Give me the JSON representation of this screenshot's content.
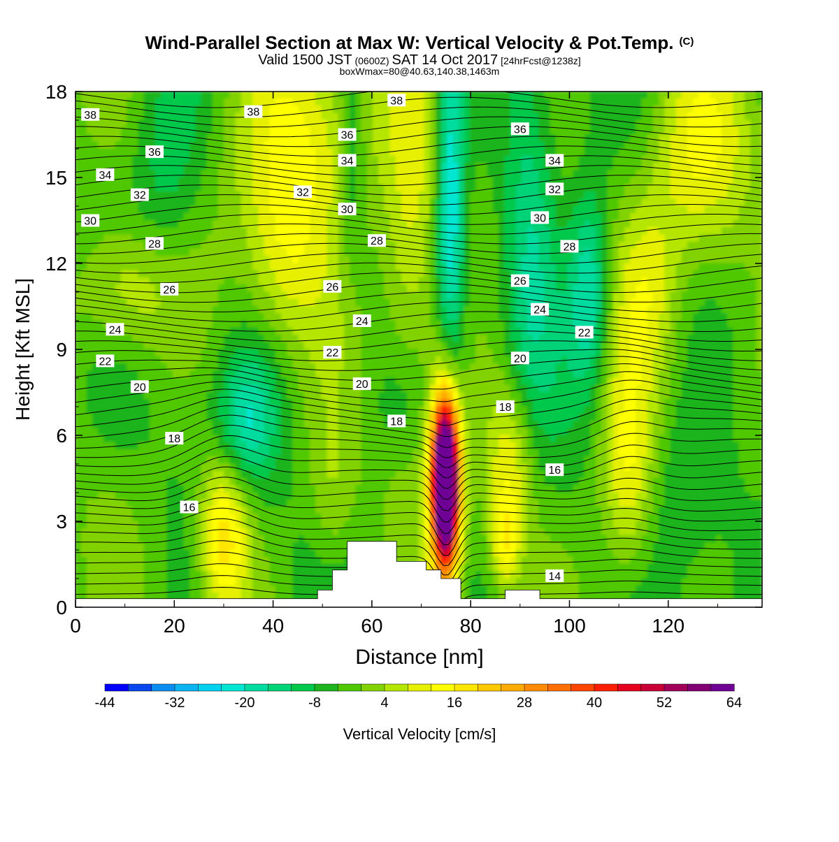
{
  "chart_data": {
    "type": "heatmap",
    "title": "Wind-Parallel Section at Max W: Vertical Velocity & Pot.Temp.",
    "title_mark": "(C)",
    "subtitle_parts": [
      "Valid 1500 JST",
      "(0600Z)",
      "SAT 14 Oct 2017",
      "[24hrFcst@1238z]"
    ],
    "info": "boxWmax=80@40.63,140.38,1463m",
    "xlabel": "Distance [nm]",
    "ylabel": "Height [Kft MSL]",
    "xlim": [
      0,
      139
    ],
    "ylim": [
      0,
      18
    ],
    "x_ticks": [
      0,
      20,
      40,
      60,
      80,
      100,
      120
    ],
    "y_ticks": [
      0,
      3,
      6,
      9,
      12,
      15,
      18
    ],
    "grid": false,
    "colorbar": {
      "label": "Vertical Velocity [cm/s]",
      "tick_labels": [
        "-44",
        "-32",
        "-20",
        "-8",
        "4",
        "16",
        "28",
        "40",
        "52",
        "64"
      ],
      "min": -44,
      "step": 4,
      "colors": [
        "#0000ff",
        "#0a46f0",
        "#0a8cf0",
        "#0ab4f0",
        "#00d2f0",
        "#00e6d2",
        "#00dca0",
        "#00d278",
        "#00c84b",
        "#1eb41e",
        "#50c800",
        "#82d200",
        "#b4e600",
        "#e6f000",
        "#ffff00",
        "#ffe600",
        "#ffc800",
        "#ffaa00",
        "#ff8c00",
        "#ff6e00",
        "#ff4600",
        "#ff1e00",
        "#e6001e",
        "#c80037",
        "#a0005a",
        "#820073",
        "#6e0096"
      ]
    },
    "w_features": [
      {
        "x": 75,
        "y": 4.3,
        "rx": 2.4,
        "ry": 2.6,
        "w": 80
      },
      {
        "x": 75,
        "y": 4.6,
        "rx": 3.5,
        "ry": 4.0,
        "w": 30
      },
      {
        "x": 30,
        "y": 2.5,
        "rx": 5,
        "ry": 2.8,
        "w": 22
      },
      {
        "x": 88,
        "y": 5.0,
        "rx": 5,
        "ry": 3.0,
        "w": 16
      },
      {
        "x": 87,
        "y": 2.2,
        "rx": 3,
        "ry": 1.6,
        "w": 14
      },
      {
        "x": 112,
        "y": 4.5,
        "rx": 6,
        "ry": 4.0,
        "w": 18
      },
      {
        "x": 52,
        "y": 3.5,
        "rx": 5,
        "ry": 3.0,
        "w": 8
      },
      {
        "x": 10,
        "y": 11.0,
        "rx": 10,
        "ry": 2.5,
        "w": 14
      },
      {
        "x": 47,
        "y": 16.5,
        "rx": 13,
        "ry": 4.0,
        "w": 18
      },
      {
        "x": 42,
        "y": 12.0,
        "rx": 8,
        "ry": 3.0,
        "w": 10
      },
      {
        "x": 68,
        "y": 12.5,
        "rx": 6,
        "ry": 6.0,
        "w": 14
      },
      {
        "x": 127,
        "y": 15.5,
        "rx": 12,
        "ry": 4.0,
        "w": 16
      },
      {
        "x": 116,
        "y": 11.0,
        "rx": 6,
        "ry": 3.0,
        "w": 8
      },
      {
        "x": 76,
        "y": 14.0,
        "rx": 2.8,
        "ry": 7.0,
        "w": -22
      },
      {
        "x": 92,
        "y": 13.0,
        "rx": 5.5,
        "ry": 6.5,
        "w": -14
      },
      {
        "x": 104,
        "y": 11.0,
        "rx": 4.0,
        "ry": 3.5,
        "w": -18
      },
      {
        "x": 35,
        "y": 6.5,
        "rx": 6,
        "ry": 2.2,
        "w": -15
      },
      {
        "x": 18,
        "y": 15.0,
        "rx": 8,
        "ry": 4.0,
        "w": -8
      },
      {
        "x": 56,
        "y": 16.0,
        "rx": 2.5,
        "ry": 4.0,
        "w": -10
      },
      {
        "x": 125,
        "y": 4.0,
        "rx": 12,
        "ry": 3.5,
        "w": -6
      },
      {
        "x": 66,
        "y": 7.0,
        "rx": 7,
        "ry": 2.0,
        "w": -5
      }
    ],
    "theta_labels": [
      {
        "v": "38",
        "x": 3,
        "y": 17.2
      },
      {
        "v": "38",
        "x": 36,
        "y": 17.3
      },
      {
        "v": "38",
        "x": 65,
        "y": 17.7
      },
      {
        "v": "36",
        "x": 16,
        "y": 15.9
      },
      {
        "v": "36",
        "x": 55,
        "y": 16.5
      },
      {
        "v": "36",
        "x": 90,
        "y": 16.7
      },
      {
        "v": "34",
        "x": 6,
        "y": 15.1
      },
      {
        "v": "34",
        "x": 55,
        "y": 15.6
      },
      {
        "v": "34",
        "x": 97,
        "y": 15.6
      },
      {
        "v": "32",
        "x": 13,
        "y": 14.4
      },
      {
        "v": "32",
        "x": 46,
        "y": 14.5
      },
      {
        "v": "32",
        "x": 97,
        "y": 14.6
      },
      {
        "v": "30",
        "x": 3,
        "y": 13.5
      },
      {
        "v": "30",
        "x": 55,
        "y": 13.9
      },
      {
        "v": "30",
        "x": 94,
        "y": 13.6
      },
      {
        "v": "28",
        "x": 16,
        "y": 12.7
      },
      {
        "v": "28",
        "x": 61,
        "y": 12.8
      },
      {
        "v": "28",
        "x": 100,
        "y": 12.6
      },
      {
        "v": "26",
        "x": 19,
        "y": 11.1
      },
      {
        "v": "26",
        "x": 52,
        "y": 11.2
      },
      {
        "v": "26",
        "x": 90,
        "y": 11.4
      },
      {
        "v": "24",
        "x": 8,
        "y": 9.7
      },
      {
        "v": "24",
        "x": 58,
        "y": 10.0
      },
      {
        "v": "24",
        "x": 94,
        "y": 10.4
      },
      {
        "v": "22",
        "x": 6,
        "y": 8.6
      },
      {
        "v": "22",
        "x": 52,
        "y": 8.9
      },
      {
        "v": "22",
        "x": 103,
        "y": 9.6
      },
      {
        "v": "20",
        "x": 13,
        "y": 7.7
      },
      {
        "v": "20",
        "x": 58,
        "y": 7.8
      },
      {
        "v": "20",
        "x": 90,
        "y": 8.7
      },
      {
        "v": "18",
        "x": 20,
        "y": 5.9
      },
      {
        "v": "18",
        "x": 65,
        "y": 6.5
      },
      {
        "v": "18",
        "x": 87,
        "y": 7.0
      },
      {
        "v": "16",
        "x": 23,
        "y": 3.5
      },
      {
        "v": "16",
        "x": 97,
        "y": 4.8
      },
      {
        "v": "14",
        "x": 97,
        "y": 1.1
      }
    ]
  }
}
